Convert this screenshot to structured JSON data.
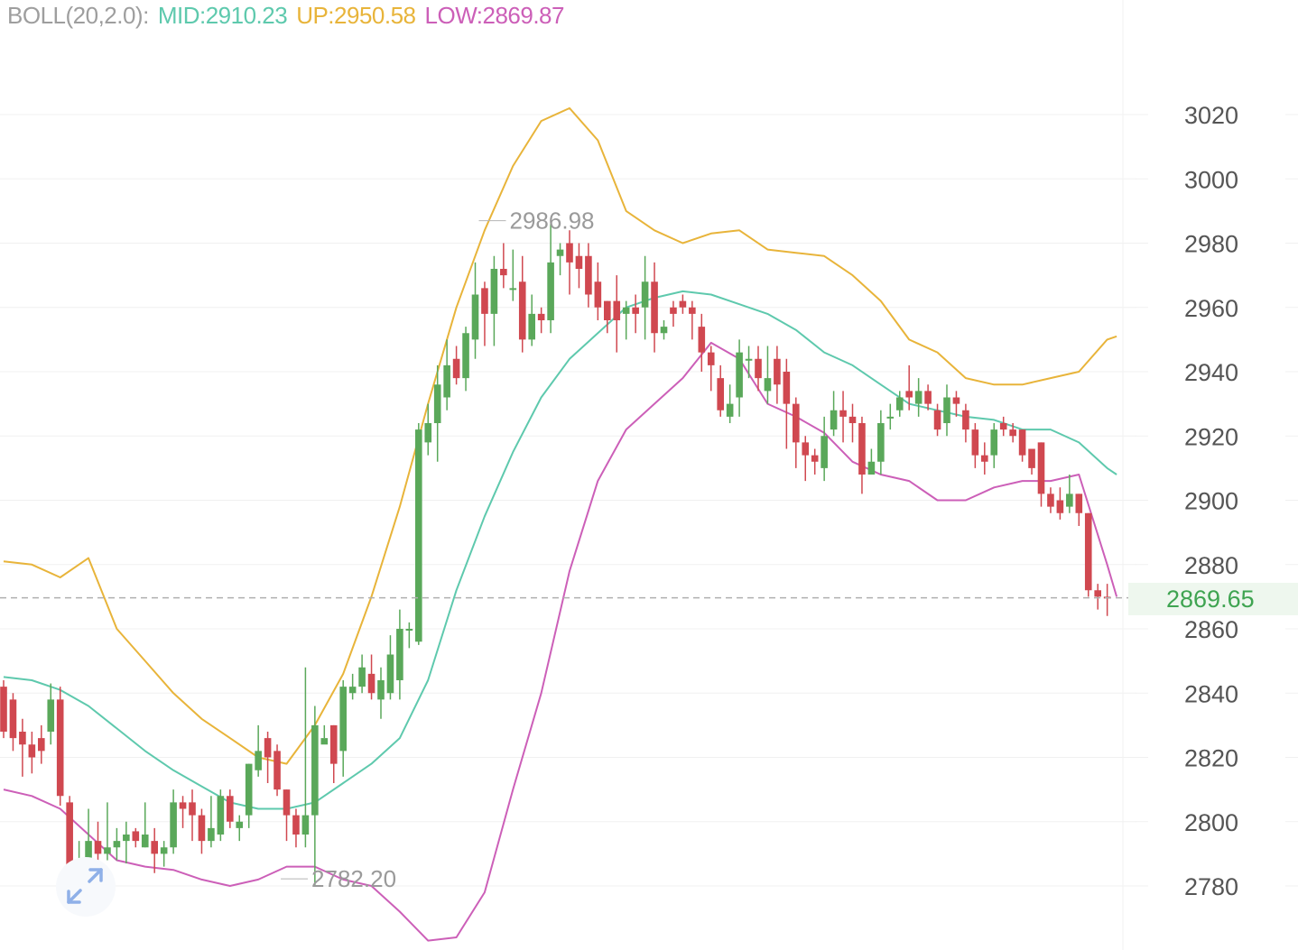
{
  "indicator": {
    "name": "BOLL(20,2.0):",
    "mid": "MID:2910.23",
    "up": "UP:2950.58",
    "low": "LOW:2869.87"
  },
  "colors": {
    "mid": "#5ec9ad",
    "up": "#e8b43a",
    "low": "#cc5fb8",
    "bull": "#5aa85a",
    "bear": "#d04850",
    "last_price": "#3fa451",
    "grid": "#f0f0f0",
    "axis_text": "#555555",
    "annotation": "#9a9a9a"
  },
  "last_price_label": "2869.65",
  "fit_button_icon": "expand-arrows-icon",
  "chart_data": {
    "type": "candlestick",
    "y_axis": {
      "side": "right",
      "ticks": [
        3020,
        3000,
        2980,
        2960,
        2940,
        2920,
        2900,
        2880,
        2860,
        2840,
        2820,
        2800,
        2780
      ]
    },
    "grid": true,
    "last_price": 2869.65,
    "annotations": [
      {
        "label": "2986.98",
        "value": 2986.98,
        "candle_index": 50
      },
      {
        "label": "2782.20",
        "value": 2782.2,
        "candle_index": 29
      }
    ],
    "candles": [
      [
        2842,
        2828,
        2844,
        2826
      ],
      [
        2838,
        2826,
        2840,
        2822
      ],
      [
        2828,
        2824,
        2832,
        2814
      ],
      [
        2824,
        2820,
        2828,
        2815
      ],
      [
        2826,
        2822,
        2830,
        2818
      ],
      [
        2828,
        2838,
        2843,
        2824
      ],
      [
        2838,
        2808,
        2842,
        2805
      ],
      [
        2806,
        2786,
        2808,
        2784
      ],
      [
        2786,
        2788,
        2794,
        2782
      ],
      [
        2788,
        2794,
        2804,
        2786
      ],
      [
        2794,
        2790,
        2800,
        2786
      ],
      [
        2790,
        2792,
        2806,
        2788
      ],
      [
        2792,
        2794,
        2798,
        2788
      ],
      [
        2794,
        2796,
        2800,
        2787
      ],
      [
        2797,
        2794,
        2798,
        2792
      ],
      [
        2792,
        2796,
        2806,
        2792
      ],
      [
        2794,
        2790,
        2798,
        2784
      ],
      [
        2790,
        2792,
        2794,
        2786
      ],
      [
        2792,
        2806,
        2810,
        2790
      ],
      [
        2806,
        2804,
        2808,
        2798
      ],
      [
        2806,
        2802,
        2810,
        2794
      ],
      [
        2802,
        2794,
        2804,
        2790
      ],
      [
        2794,
        2798,
        2808,
        2792
      ],
      [
        2796,
        2808,
        2810,
        2794
      ],
      [
        2808,
        2800,
        2810,
        2798
      ],
      [
        2798,
        2800,
        2802,
        2794
      ],
      [
        2802,
        2818,
        2818,
        2798
      ],
      [
        2816,
        2822,
        2830,
        2814
      ],
      [
        2826,
        2820,
        2828,
        2812
      ],
      [
        2822,
        2810,
        2824,
        2808
      ],
      [
        2810,
        2802,
        2810,
        2794
      ],
      [
        2802,
        2796,
        2804,
        2792
      ],
      [
        2796,
        2802,
        2848,
        2792
      ],
      [
        2802,
        2830,
        2836,
        2780
      ],
      [
        2824,
        2826,
        2830,
        2826
      ],
      [
        2830,
        2818,
        2830,
        2812
      ],
      [
        2822,
        2842,
        2844,
        2814
      ],
      [
        2840,
        2842,
        2846,
        2838
      ],
      [
        2842,
        2848,
        2852,
        2840
      ],
      [
        2846,
        2840,
        2852,
        2838
      ],
      [
        2838,
        2844,
        2848,
        2832
      ],
      [
        2840,
        2852,
        2858,
        2838
      ],
      [
        2844,
        2860,
        2866,
        2838
      ],
      [
        2860,
        2860,
        2862,
        2854
      ],
      [
        2856,
        2922,
        2924,
        2855
      ],
      [
        2918,
        2924,
        2930,
        2914
      ],
      [
        2924,
        2936,
        2942,
        2912
      ],
      [
        2932,
        2942,
        2950,
        2928
      ],
      [
        2944,
        2938,
        2948,
        2936
      ],
      [
        2938,
        2952,
        2954,
        2934
      ],
      [
        2950,
        2964,
        2974,
        2944
      ],
      [
        2966,
        2958,
        2968,
        2948
      ],
      [
        2958,
        2972,
        2976,
        2948
      ],
      [
        2972,
        2970,
        2980,
        2966
      ],
      [
        2966,
        2966,
        2978,
        2962
      ],
      [
        2968,
        2950,
        2976,
        2946
      ],
      [
        2950,
        2958,
        2964,
        2948
      ],
      [
        2958,
        2956,
        2960,
        2952
      ],
      [
        2956,
        2974,
        2986,
        2952
      ],
      [
        2976,
        2978,
        2980,
        2970
      ],
      [
        2980,
        2974,
        2984,
        2964
      ],
      [
        2976,
        2972,
        2980,
        2966
      ],
      [
        2976,
        2964,
        2980,
        2960
      ],
      [
        2968,
        2960,
        2974,
        2956
      ],
      [
        2962,
        2956,
        2962,
        2952
      ],
      [
        2962,
        2956,
        2970,
        2946
      ],
      [
        2958,
        2960,
        2962,
        2950
      ],
      [
        2960,
        2958,
        2964,
        2952
      ],
      [
        2960,
        2968,
        2976,
        2950
      ],
      [
        2968,
        2952,
        2974,
        2946
      ],
      [
        2952,
        2954,
        2956,
        2950
      ],
      [
        2960,
        2958,
        2962,
        2954
      ],
      [
        2962,
        2960,
        2964,
        2958
      ],
      [
        2960,
        2958,
        2962,
        2950
      ],
      [
        2954,
        2946,
        2958,
        2940
      ],
      [
        2946,
        2942,
        2948,
        2934
      ],
      [
        2938,
        2928,
        2942,
        2926
      ],
      [
        2926,
        2930,
        2936,
        2924
      ],
      [
        2932,
        2946,
        2950,
        2926
      ],
      [
        2944,
        2944,
        2948,
        2938
      ],
      [
        2944,
        2938,
        2948,
        2934
      ],
      [
        2934,
        2938,
        2948,
        2930
      ],
      [
        2944,
        2936,
        2948,
        2930
      ],
      [
        2940,
        2930,
        2944,
        2916
      ],
      [
        2930,
        2918,
        2932,
        2910
      ],
      [
        2918,
        2914,
        2920,
        2906
      ],
      [
        2914,
        2912,
        2916,
        2908
      ],
      [
        2910,
        2920,
        2926,
        2906
      ],
      [
        2922,
        2928,
        2934,
        2920
      ],
      [
        2928,
        2926,
        2934,
        2918
      ],
      [
        2926,
        2924,
        2930,
        2918
      ],
      [
        2924,
        2908,
        2926,
        2902
      ],
      [
        2908,
        2912,
        2916,
        2910
      ],
      [
        2912,
        2924,
        2928,
        2908
      ],
      [
        2926,
        2926,
        2930,
        2922
      ],
      [
        2928,
        2932,
        2934,
        2926
      ],
      [
        2934,
        2932,
        2942,
        2928
      ],
      [
        2930,
        2934,
        2938,
        2926
      ],
      [
        2934,
        2930,
        2936,
        2928
      ],
      [
        2928,
        2922,
        2930,
        2920
      ],
      [
        2924,
        2932,
        2936,
        2920
      ],
      [
        2932,
        2930,
        2934,
        2926
      ],
      [
        2928,
        2922,
        2930,
        2918
      ],
      [
        2922,
        2914,
        2924,
        2910
      ],
      [
        2914,
        2912,
        2918,
        2908
      ],
      [
        2914,
        2922,
        2924,
        2910
      ],
      [
        2924,
        2922,
        2926,
        2920
      ],
      [
        2922,
        2920,
        2924,
        2918
      ],
      [
        2922,
        2914,
        2922,
        2912
      ],
      [
        2916,
        2910,
        2916,
        2908
      ],
      [
        2918,
        2902,
        2918,
        2898
      ],
      [
        2902,
        2898,
        2904,
        2896
      ],
      [
        2900,
        2896,
        2904,
        2894
      ],
      [
        2898,
        2902,
        2908,
        2896
      ],
      [
        2902,
        2896,
        2902,
        2892
      ],
      [
        2896,
        2872,
        2896,
        2870
      ],
      [
        2872,
        2870,
        2874,
        2866
      ],
      [
        2870,
        2869.65,
        2874,
        2864
      ]
    ],
    "bands": {
      "up": [
        [
          0,
          2881
        ],
        [
          3,
          2880
        ],
        [
          6,
          2876
        ],
        [
          9,
          2882
        ],
        [
          12,
          2860
        ],
        [
          15,
          2850
        ],
        [
          18,
          2840
        ],
        [
          21,
          2832
        ],
        [
          24,
          2826
        ],
        [
          27,
          2820
        ],
        [
          30,
          2818
        ],
        [
          33,
          2830
        ],
        [
          36,
          2846
        ],
        [
          39,
          2870
        ],
        [
          42,
          2898
        ],
        [
          45,
          2930
        ],
        [
          48,
          2960
        ],
        [
          51,
          2984
        ],
        [
          54,
          3004
        ],
        [
          57,
          3018
        ],
        [
          60,
          3022
        ],
        [
          63,
          3012
        ],
        [
          66,
          2990
        ],
        [
          69,
          2984
        ],
        [
          72,
          2980
        ],
        [
          75,
          2983
        ],
        [
          78,
          2984
        ],
        [
          81,
          2978
        ],
        [
          84,
          2977
        ],
        [
          87,
          2976
        ],
        [
          90,
          2970
        ],
        [
          93,
          2962
        ],
        [
          96,
          2950
        ],
        [
          99,
          2946
        ],
        [
          102,
          2938
        ],
        [
          105,
          2936
        ],
        [
          108,
          2936
        ],
        [
          111,
          2938
        ],
        [
          114,
          2940
        ],
        [
          117,
          2950
        ],
        [
          118,
          2951
        ]
      ],
      "mid": [
        [
          0,
          2845
        ],
        [
          3,
          2844
        ],
        [
          6,
          2841
        ],
        [
          9,
          2836
        ],
        [
          12,
          2829
        ],
        [
          15,
          2822
        ],
        [
          18,
          2816
        ],
        [
          21,
          2811
        ],
        [
          24,
          2806
        ],
        [
          27,
          2804
        ],
        [
          30,
          2804
        ],
        [
          33,
          2806
        ],
        [
          36,
          2812
        ],
        [
          39,
          2818
        ],
        [
          42,
          2826
        ],
        [
          45,
          2844
        ],
        [
          48,
          2872
        ],
        [
          51,
          2895
        ],
        [
          54,
          2915
        ],
        [
          57,
          2932
        ],
        [
          60,
          2944
        ],
        [
          63,
          2952
        ],
        [
          66,
          2960
        ],
        [
          69,
          2963
        ],
        [
          72,
          2965
        ],
        [
          75,
          2964
        ],
        [
          78,
          2961
        ],
        [
          81,
          2958
        ],
        [
          84,
          2953
        ],
        [
          87,
          2946
        ],
        [
          90,
          2942
        ],
        [
          93,
          2936
        ],
        [
          96,
          2930
        ],
        [
          99,
          2928
        ],
        [
          102,
          2926
        ],
        [
          105,
          2925
        ],
        [
          108,
          2922
        ],
        [
          111,
          2922
        ],
        [
          114,
          2918
        ],
        [
          117,
          2910
        ],
        [
          118,
          2908
        ]
      ],
      "low": [
        [
          0,
          2810
        ],
        [
          3,
          2808
        ],
        [
          6,
          2804
        ],
        [
          9,
          2796
        ],
        [
          12,
          2788
        ],
        [
          15,
          2786
        ],
        [
          18,
          2785
        ],
        [
          21,
          2782
        ],
        [
          24,
          2780
        ],
        [
          27,
          2782
        ],
        [
          30,
          2786
        ],
        [
          33,
          2786
        ],
        [
          36,
          2782
        ],
        [
          39,
          2780
        ],
        [
          42,
          2772
        ],
        [
          45,
          2763
        ],
        [
          48,
          2764
        ],
        [
          51,
          2778
        ],
        [
          54,
          2810
        ],
        [
          57,
          2840
        ],
        [
          60,
          2878
        ],
        [
          63,
          2906
        ],
        [
          66,
          2922
        ],
        [
          69,
          2930
        ],
        [
          72,
          2938
        ],
        [
          75,
          2949
        ],
        [
          78,
          2944
        ],
        [
          81,
          2930
        ],
        [
          84,
          2926
        ],
        [
          87,
          2921
        ],
        [
          90,
          2912
        ],
        [
          93,
          2908
        ],
        [
          96,
          2906
        ],
        [
          99,
          2900
        ],
        [
          102,
          2900
        ],
        [
          105,
          2904
        ],
        [
          108,
          2906
        ],
        [
          111,
          2906
        ],
        [
          114,
          2908
        ],
        [
          117,
          2880
        ],
        [
          118,
          2870
        ]
      ]
    }
  }
}
